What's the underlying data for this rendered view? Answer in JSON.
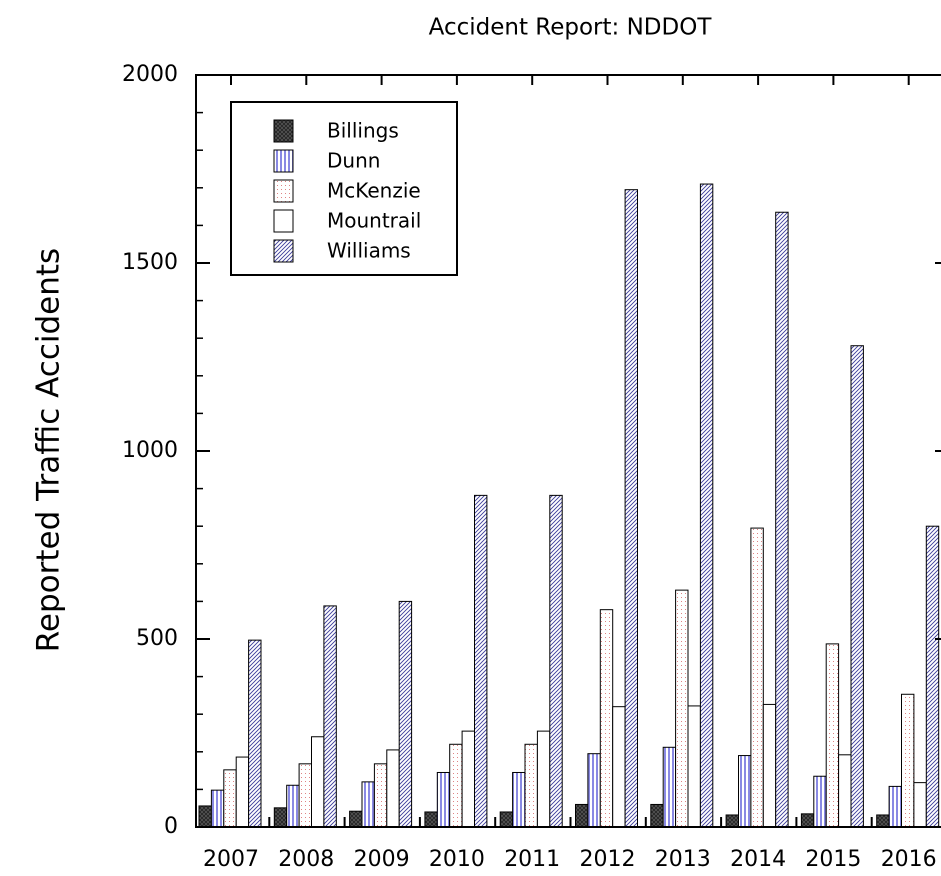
{
  "chart_data": {
    "type": "bar",
    "title": "Accident Report: NDDOT",
    "y_label": "Reported Traffic Accidents",
    "categories": [
      "2007",
      "2008",
      "2009",
      "2010",
      "2011",
      "2012",
      "2013",
      "2014",
      "2015",
      "2016"
    ],
    "series": [
      {
        "name": "Billings",
        "color": "#555555",
        "pattern": "crosshatch",
        "legend_text_color": "#000000",
        "values": [
          56,
          51,
          42,
          40,
          40,
          60,
          60,
          32,
          35,
          32
        ]
      },
      {
        "name": "Dunn",
        "color": "#3a3ad0",
        "pattern": "vertical",
        "legend_text_color": "#0000cc",
        "values": [
          98,
          111,
          120,
          145,
          145,
          195,
          212,
          190,
          135,
          108
        ]
      },
      {
        "name": "McKenzie",
        "color": "#d05050",
        "pattern": "dots",
        "legend_text_color": "#dd0000",
        "values": [
          152,
          168,
          168,
          220,
          220,
          578,
          630,
          795,
          487,
          353
        ]
      },
      {
        "name": "Mountrail",
        "color": "#ffffff",
        "pattern": "solid",
        "legend_text_color": "#000000",
        "values": [
          186,
          240,
          205,
          255,
          255,
          320,
          322,
          326,
          192,
          118
        ]
      },
      {
        "name": "Williams",
        "color": "#3a3a9a",
        "pattern": "diagonal",
        "legend_text_color": "#0000cc",
        "values": [
          497,
          588,
          600,
          882,
          882,
          1695,
          1710,
          1635,
          1280,
          800
        ]
      }
    ],
    "ylim": [
      0,
      2000
    ],
    "yticks": [
      0,
      500,
      1000,
      1500,
      2000
    ],
    "yminorticks": [
      100,
      200,
      300,
      400,
      600,
      700,
      800,
      900,
      1100,
      1200,
      1300,
      1400,
      1600,
      1700,
      1800,
      1900
    ],
    "grid": false,
    "legend": "upper left"
  }
}
